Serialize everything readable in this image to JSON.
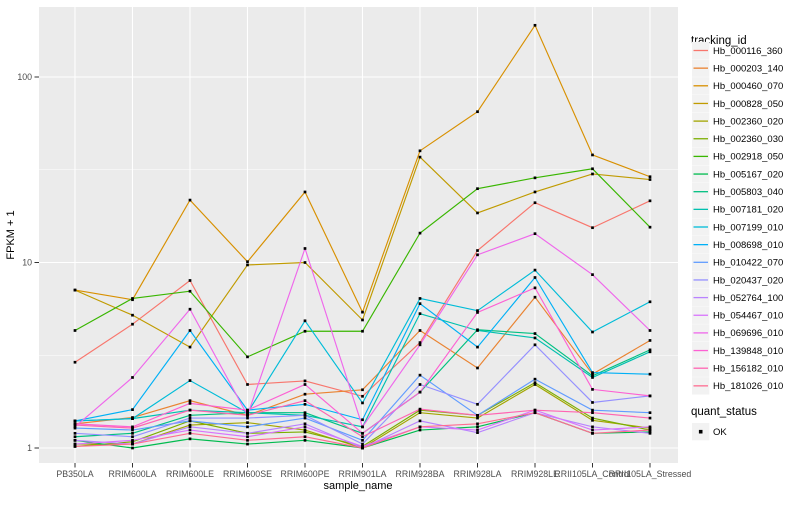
{
  "figure": {
    "kind": "ggplot-style line chart",
    "background_color": "#FFFFFF",
    "panel_background_color": "#EBEBEB",
    "gridline_color": "#FFFFFF",
    "point_marker": "black-square",
    "point_color": "#000000",
    "tick_label_color": "#4D4D4D"
  },
  "legend": {
    "tracking_title": "tracking_id",
    "quant_title": "quant_status",
    "quant_value": "OK",
    "key_background": "#F2F2F2"
  },
  "chart_data": {
    "type": "line",
    "title": "",
    "xlabel": "sample_name",
    "ylabel": "FPKM + 1",
    "y_scale": "log10",
    "y_ticks": [
      1,
      10,
      100
    ],
    "y_minor_gridlines": [
      3.162,
      31.62
    ],
    "ylim": [
      0.9,
      240
    ],
    "grid": true,
    "legend_position": "right",
    "categories": [
      "PB350LA",
      "RRIM600LA",
      "RRIM600LE",
      "RRIM600SE",
      "RRIM600PE",
      "RRIM901LA",
      "RRIM928BA",
      "RRIM928LA",
      "RRIM928LE",
      "RRII105LA_Control",
      "RRII105LA_Stressed"
    ],
    "series": [
      {
        "name": "Hb_000116_360",
        "color": "#F8766D",
        "values": [
          2.9,
          4.65,
          8.0,
          2.2,
          2.3,
          1.9,
          3.7,
          11.6,
          21.0,
          15.4,
          21.5
        ]
      },
      {
        "name": "Hb_000203_140",
        "color": "#EA8331",
        "values": [
          1.35,
          1.46,
          1.8,
          1.5,
          1.95,
          2.06,
          4.3,
          2.7,
          6.5,
          2.5,
          3.8
        ]
      },
      {
        "name": "Hb_000460_070",
        "color": "#D89000",
        "values": [
          7.1,
          6.3,
          21.7,
          10.1,
          24.0,
          5.4,
          40.0,
          65.0,
          190.0,
          38.0,
          29.0
        ]
      },
      {
        "name": "Hb_000828_050",
        "color": "#C09B00",
        "values": [
          7.1,
          5.2,
          3.5,
          9.7,
          10.0,
          4.9,
          37.0,
          18.5,
          24.0,
          30.0,
          28.0
        ]
      },
      {
        "name": "Hb_002360_020",
        "color": "#A3A500",
        "values": [
          1.05,
          1.05,
          1.33,
          1.37,
          1.25,
          1.0,
          1.55,
          1.45,
          2.2,
          1.41,
          1.28
        ]
      },
      {
        "name": "Hb_002360_030",
        "color": "#7CAE00",
        "values": [
          1.02,
          1.08,
          1.4,
          1.2,
          1.22,
          1.02,
          1.6,
          1.5,
          2.25,
          1.45,
          1.25
        ]
      },
      {
        "name": "Hb_002918_050",
        "color": "#39B600",
        "values": [
          4.3,
          6.4,
          7.0,
          3.1,
          4.26,
          4.26,
          14.4,
          25.0,
          28.6,
          32.0,
          15.5
        ]
      },
      {
        "name": "Hb_005167_020",
        "color": "#00BB4E",
        "values": [
          1.1,
          1.0,
          1.12,
          1.05,
          1.1,
          1.0,
          1.25,
          1.3,
          1.55,
          1.2,
          1.22
        ]
      },
      {
        "name": "Hb_005803_040",
        "color": "#00C081",
        "values": [
          1.15,
          1.2,
          1.5,
          1.55,
          1.55,
          1.2,
          2.0,
          4.34,
          4.14,
          2.45,
          3.38
        ]
      },
      {
        "name": "Hb_007181_020",
        "color": "#00C0AF",
        "values": [
          1.4,
          1.44,
          1.6,
          1.55,
          1.5,
          1.3,
          5.3,
          4.3,
          3.92,
          2.4,
          3.3
        ]
      },
      {
        "name": "Hb_007199_010",
        "color": "#00BCD8",
        "values": [
          1.4,
          1.44,
          2.31,
          1.55,
          4.85,
          1.75,
          6.4,
          5.5,
          9.1,
          4.22,
          6.14
        ]
      },
      {
        "name": "Hb_008698_010",
        "color": "#00B0F6",
        "values": [
          1.4,
          1.61,
          4.3,
          1.6,
          1.72,
          1.42,
          6.0,
          3.5,
          8.3,
          2.55,
          2.5
        ]
      },
      {
        "name": "Hb_010422_070",
        "color": "#619CFF",
        "values": [
          1.28,
          1.25,
          1.4,
          1.3,
          1.45,
          1.1,
          2.47,
          1.5,
          2.35,
          1.6,
          1.55
        ]
      },
      {
        "name": "Hb_020437_020",
        "color": "#9590FF",
        "values": [
          1.2,
          1.15,
          1.45,
          1.45,
          1.5,
          1.05,
          2.2,
          1.72,
          3.6,
          1.76,
          1.91
        ]
      },
      {
        "name": "Hb_052764_100",
        "color": "#B983FF",
        "values": [
          1.1,
          1.05,
          1.3,
          1.2,
          1.35,
          1.0,
          1.4,
          1.21,
          1.55,
          1.3,
          1.2
        ]
      },
      {
        "name": "Hb_054467_010",
        "color": "#D874FD",
        "values": [
          1.05,
          1.1,
          1.25,
          1.15,
          1.3,
          1.02,
          1.3,
          1.25,
          1.6,
          1.25,
          1.3
        ]
      },
      {
        "name": "Hb_069696_010",
        "color": "#EF67EB",
        "values": [
          1.3,
          2.4,
          5.6,
          1.5,
          11.9,
          1.3,
          3.6,
          11.0,
          14.3,
          8.6,
          4.3
        ]
      },
      {
        "name": "Hb_139848_010",
        "color": "#FD61D3",
        "values": [
          1.35,
          1.3,
          1.74,
          1.6,
          2.2,
          1.2,
          2.0,
          5.38,
          7.3,
          2.07,
          1.91
        ]
      },
      {
        "name": "Hb_156182_010",
        "color": "#FF65B2",
        "values": [
          1.33,
          1.28,
          1.6,
          1.5,
          1.8,
          1.15,
          1.62,
          1.5,
          1.6,
          1.55,
          1.45
        ]
      },
      {
        "name": "Hb_181026_010",
        "color": "#FF6C91",
        "values": [
          1.02,
          1.05,
          1.2,
          1.1,
          1.15,
          1.0,
          1.3,
          1.35,
          1.55,
          1.2,
          1.25
        ]
      }
    ]
  }
}
